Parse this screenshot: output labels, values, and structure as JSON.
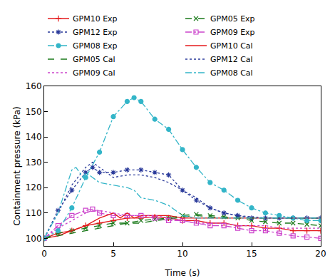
{
  "chart_data": {
    "type": "line",
    "x_label": "Time (s)",
    "y_label": "Containment pressure (kPa)",
    "xlim": [
      0,
      20
    ],
    "xticks": [
      0,
      5,
      10,
      15,
      20
    ],
    "ylim": [
      97,
      160
    ],
    "yticks": [
      100,
      110,
      120,
      130,
      140,
      150,
      160
    ],
    "grid": false,
    "legend": "top",
    "series": [
      {
        "name": "GPM10 Exp",
        "color": "#e41a1c",
        "marker": "plus",
        "line_style": "solid",
        "x": [
          0,
          1,
          2,
          3,
          4,
          5,
          6,
          7,
          8,
          9,
          10,
          11,
          12,
          13,
          14,
          15,
          16,
          17,
          18,
          19,
          20
        ],
        "values": [
          100,
          102,
          103,
          105,
          106,
          107,
          108,
          108,
          108.5,
          108,
          107,
          107,
          106,
          106,
          105,
          105,
          104,
          104,
          103,
          103,
          103
        ]
      },
      {
        "name": "GPM05 Exp",
        "color": "#1a7a1a",
        "marker": "x",
        "line_style": "dash",
        "x": [
          0,
          1,
          2,
          3,
          4,
          5,
          6,
          7,
          8,
          9,
          10,
          11,
          12,
          13,
          14,
          15,
          16,
          17,
          18,
          19,
          20
        ],
        "values": [
          100,
          102,
          103,
          104,
          105,
          106,
          106,
          107,
          107.5,
          108,
          109,
          109.5,
          109,
          108.5,
          108,
          107,
          106.5,
          106,
          106,
          105.5,
          105
        ]
      },
      {
        "name": "GPM12 Exp",
        "color": "#2a3a9a",
        "marker": "star",
        "line_style": "dot",
        "x": [
          0,
          1,
          2,
          3,
          3.5,
          4,
          5,
          6,
          7,
          8,
          9,
          10,
          11,
          12,
          13,
          14,
          15,
          16,
          17,
          18,
          19,
          20
        ],
        "values": [
          100,
          111,
          119,
          126,
          128,
          126,
          126,
          127,
          127,
          126,
          125,
          119,
          115,
          112,
          110,
          109,
          108,
          108,
          108,
          108,
          108,
          108
        ]
      },
      {
        "name": "GPM09 Exp",
        "color": "#cc44cc",
        "marker": "square",
        "line_style": "dashdot",
        "x": [
          0,
          1,
          2,
          3,
          3.5,
          4,
          5,
          6,
          7,
          8,
          9,
          10,
          11,
          12,
          13,
          14,
          15,
          16,
          17,
          18,
          19,
          20
        ],
        "values": [
          100,
          105,
          109,
          111,
          111.5,
          110,
          109,
          109,
          109,
          108,
          107,
          107,
          106,
          105,
          105,
          104,
          103,
          103,
          102,
          101,
          100.5,
          100
        ]
      },
      {
        "name": "GPM08 Exp",
        "color": "#33b5c8",
        "marker": "circle",
        "line_style": "dashdot",
        "x": [
          0,
          1,
          2,
          3,
          4,
          5,
          6,
          6.5,
          7,
          8,
          9,
          10,
          11,
          12,
          13,
          14,
          15,
          16,
          17,
          18,
          19,
          20
        ],
        "values": [
          100,
          103,
          112,
          124,
          134,
          148,
          154,
          155.5,
          154,
          147,
          143,
          135,
          128,
          122,
          119,
          115,
          112,
          110,
          109,
          108,
          107,
          107
        ]
      },
      {
        "name": "GPM10 Cal",
        "color": "#e41a1c",
        "line_style": "solid",
        "x": [
          0,
          1,
          2,
          3,
          4,
          4.5,
          5,
          5.5,
          6,
          6.5,
          7,
          8,
          9,
          10,
          11,
          12,
          13,
          14,
          15,
          16,
          17,
          18,
          19,
          20
        ],
        "values": [
          100,
          101,
          103,
          105,
          108,
          109,
          110,
          108,
          110,
          108,
          109,
          109,
          109,
          108,
          108,
          108,
          108,
          108,
          108,
          108,
          108,
          108,
          108,
          108
        ]
      },
      {
        "name": "GPM05 Cal",
        "color": "#1a7a1a",
        "line_style": "dash",
        "x": [
          0,
          1,
          2,
          3,
          4,
          5,
          6,
          7,
          8,
          9,
          10,
          11,
          12,
          13,
          14,
          15,
          16,
          17,
          18,
          19,
          20
        ],
        "values": [
          100,
          101,
          102,
          103,
          104,
          105,
          106,
          106,
          107,
          107.5,
          108.5,
          109,
          108.5,
          108,
          108,
          108,
          108,
          108,
          108,
          108,
          108
        ]
      },
      {
        "name": "GPM12 Cal",
        "color": "#2a3a9a",
        "line_style": "dot",
        "x": [
          0,
          1,
          2,
          3,
          3.5,
          4,
          5,
          6,
          7,
          8,
          9,
          10,
          11,
          12,
          13,
          14,
          15,
          16,
          17,
          18,
          19,
          20
        ],
        "values": [
          100,
          110,
          121,
          128,
          130,
          128,
          124,
          125,
          125,
          124,
          122,
          119,
          116,
          112,
          110,
          109,
          108.5,
          108,
          108,
          108,
          108,
          108
        ]
      },
      {
        "name": "GPM09 Cal",
        "color": "#cc44cc",
        "line_style": "dot",
        "x": [
          0,
          1,
          2,
          3,
          3.5,
          4,
          5,
          6,
          7,
          8,
          9,
          10,
          11,
          12,
          13,
          14,
          15,
          16,
          17,
          18,
          19,
          20
        ],
        "values": [
          100,
          104,
          107,
          110,
          111,
          111,
          110,
          109,
          109,
          109,
          108,
          107,
          106,
          106,
          106,
          105,
          105,
          105,
          104,
          104,
          104,
          104
        ]
      },
      {
        "name": "GPM08 Cal",
        "color": "#33b5c8",
        "line_style": "dashdot",
        "x": [
          0,
          1,
          2,
          2.3,
          2.8,
          3,
          3.5,
          4,
          5,
          6,
          6.5,
          7,
          8,
          9,
          10,
          11,
          12,
          13,
          14,
          15,
          16,
          17,
          18,
          19,
          20
        ],
        "values": [
          100,
          110,
          127,
          128,
          124,
          126,
          124,
          122,
          121,
          120,
          119,
          116,
          115,
          113,
          109,
          108,
          108,
          108,
          108,
          108,
          108,
          108,
          108,
          108,
          108
        ]
      }
    ]
  }
}
